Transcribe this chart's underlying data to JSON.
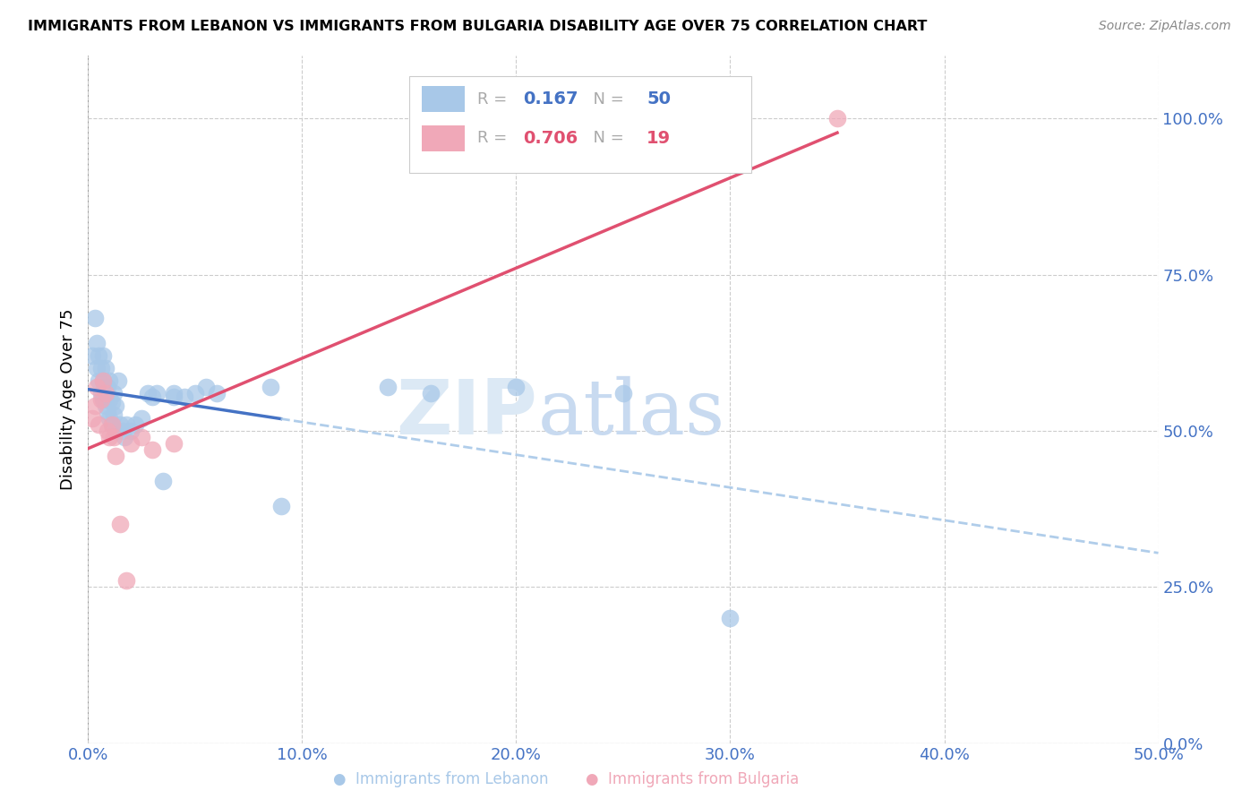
{
  "title": "IMMIGRANTS FROM LEBANON VS IMMIGRANTS FROM BULGARIA DISABILITY AGE OVER 75 CORRELATION CHART",
  "source": "Source: ZipAtlas.com",
  "ylabel_label": "Disability Age Over 75",
  "R1": 0.167,
  "N1": 50,
  "R2": 0.706,
  "N2": 19,
  "xlim": [
    0.0,
    0.5
  ],
  "ylim": [
    0.0,
    1.1
  ],
  "yticks": [
    0.0,
    0.25,
    0.5,
    0.75,
    1.0
  ],
  "xticks": [
    0.0,
    0.1,
    0.2,
    0.3,
    0.4,
    0.5
  ],
  "color_lebanon": "#a8c8e8",
  "color_bulgaria": "#f0a8b8",
  "line_color_lebanon": "#4472c4",
  "line_color_bulgaria": "#e05070",
  "dashed_line_color": "#a8c8e8",
  "watermark_zip": "ZIP",
  "watermark_atlas": "atlas",
  "watermark_color": "#dce9f5",
  "lebanon_x": [
    0.002,
    0.003,
    0.004,
    0.004,
    0.005,
    0.005,
    0.006,
    0.006,
    0.007,
    0.007,
    0.007,
    0.008,
    0.008,
    0.008,
    0.009,
    0.009,
    0.01,
    0.01,
    0.01,
    0.011,
    0.011,
    0.012,
    0.012,
    0.013,
    0.013,
    0.014,
    0.015,
    0.016,
    0.017,
    0.018,
    0.02,
    0.022,
    0.025,
    0.028,
    0.03,
    0.032,
    0.035,
    0.04,
    0.04,
    0.045,
    0.05,
    0.055,
    0.06,
    0.085,
    0.09,
    0.14,
    0.16,
    0.2,
    0.25,
    0.3
  ],
  "lebanon_y": [
    0.62,
    0.68,
    0.6,
    0.64,
    0.58,
    0.62,
    0.56,
    0.6,
    0.55,
    0.58,
    0.62,
    0.54,
    0.57,
    0.6,
    0.53,
    0.57,
    0.52,
    0.55,
    0.58,
    0.51,
    0.545,
    0.525,
    0.56,
    0.5,
    0.54,
    0.58,
    0.51,
    0.5,
    0.49,
    0.51,
    0.5,
    0.51,
    0.52,
    0.56,
    0.555,
    0.56,
    0.42,
    0.555,
    0.56,
    0.555,
    0.56,
    0.57,
    0.56,
    0.57,
    0.38,
    0.57,
    0.56,
    0.57,
    0.56,
    0.2
  ],
  "bulgaria_x": [
    0.002,
    0.003,
    0.004,
    0.005,
    0.006,
    0.007,
    0.008,
    0.009,
    0.01,
    0.011,
    0.012,
    0.013,
    0.015,
    0.018,
    0.02,
    0.025,
    0.03,
    0.04,
    0.35
  ],
  "bulgaria_y": [
    0.52,
    0.54,
    0.57,
    0.51,
    0.55,
    0.58,
    0.56,
    0.5,
    0.49,
    0.51,
    0.49,
    0.46,
    0.35,
    0.26,
    0.48,
    0.49,
    0.47,
    0.48,
    1.0
  ]
}
